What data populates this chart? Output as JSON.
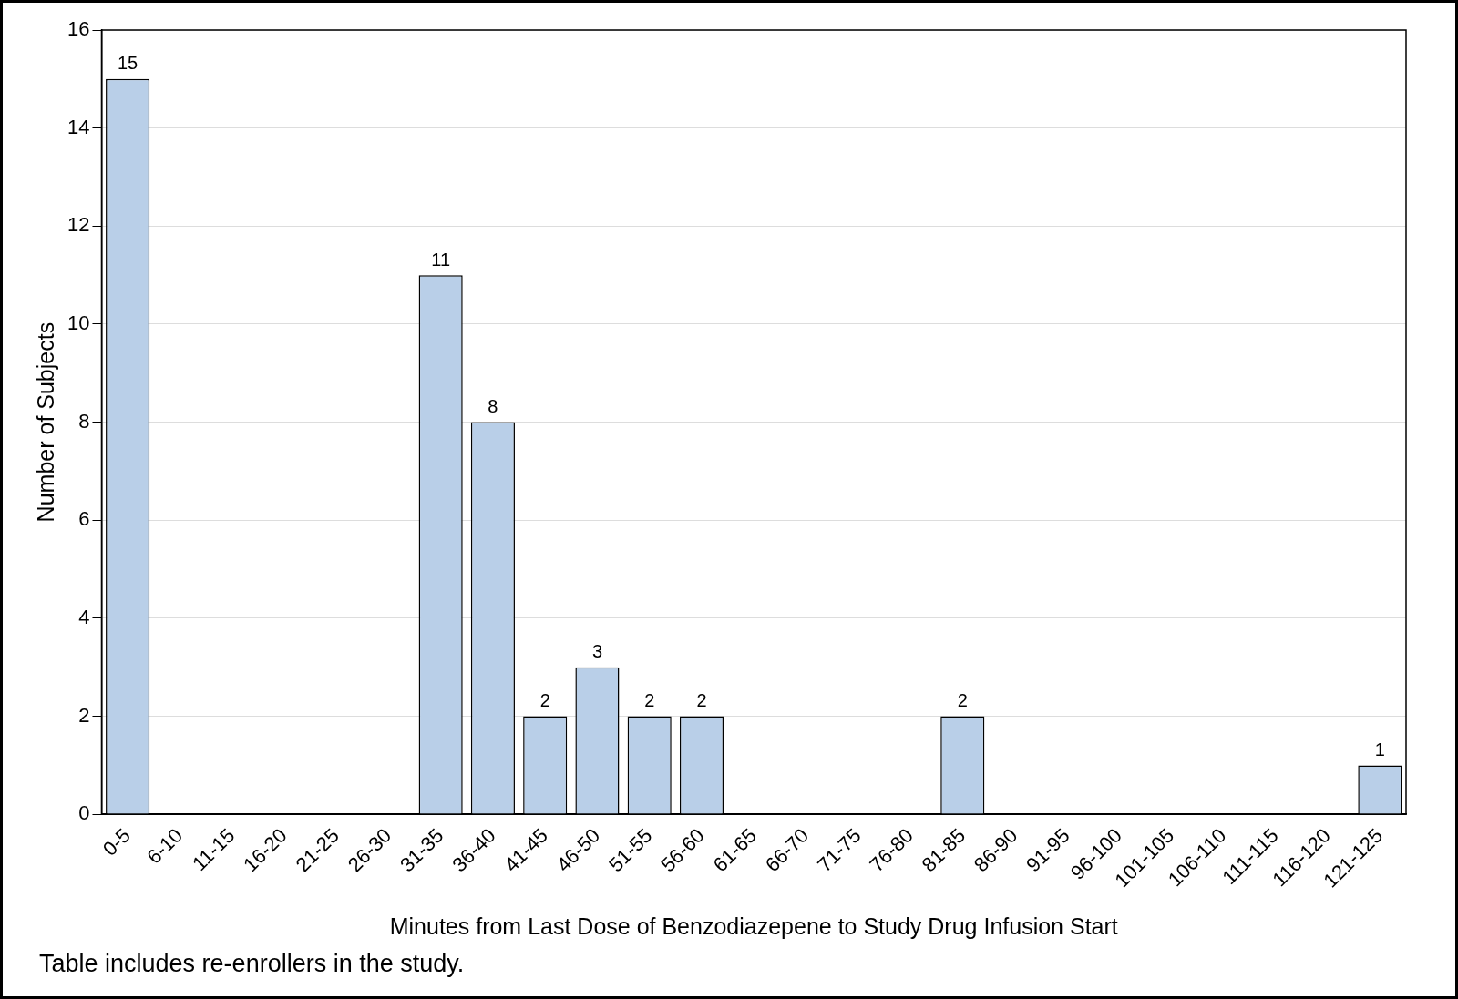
{
  "chart_data": {
    "type": "bar",
    "xlabel": "Minutes from Last Dose of Benzodiazepene to Study Drug Infusion Start",
    "ylabel": "Number of Subjects",
    "categories": [
      "0-5",
      "6-10",
      "11-15",
      "16-20",
      "21-25",
      "26-30",
      "31-35",
      "36-40",
      "41-45",
      "46-50",
      "51-55",
      "56-60",
      "61-65",
      "66-70",
      "71-75",
      "76-80",
      "81-85",
      "86-90",
      "91-95",
      "96-100",
      "101-105",
      "106-110",
      "111-115",
      "116-120",
      "121-125"
    ],
    "values": [
      15,
      0,
      0,
      0,
      0,
      0,
      11,
      8,
      2,
      3,
      2,
      2,
      0,
      0,
      0,
      0,
      2,
      0,
      0,
      0,
      0,
      0,
      0,
      0,
      1
    ],
    "value_labels": [
      "15",
      null,
      null,
      null,
      null,
      null,
      "11",
      "8",
      "2",
      "3",
      "2",
      "2",
      null,
      null,
      null,
      null,
      "2",
      null,
      null,
      null,
      null,
      null,
      null,
      null,
      "1"
    ],
    "color": "#b9cfe8",
    "ylim": [
      0,
      16
    ],
    "yticks": [
      0,
      2,
      4,
      6,
      8,
      10,
      12,
      14,
      16
    ],
    "grid": "y",
    "legend": false,
    "annotations": [
      "Table includes re-enrollers in the study."
    ]
  }
}
